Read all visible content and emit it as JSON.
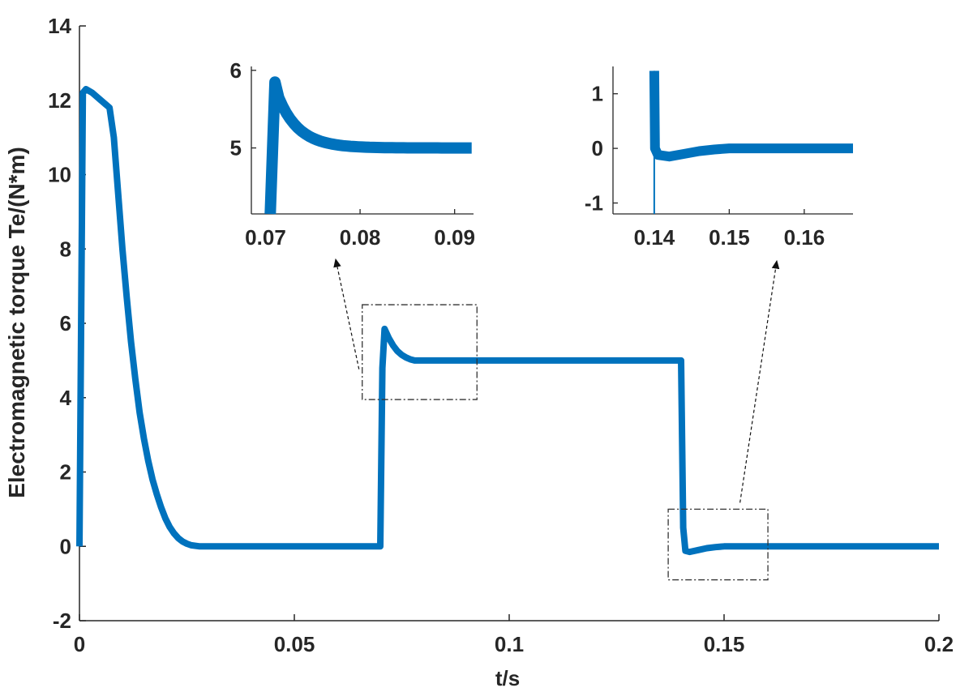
{
  "chart_data": {
    "type": "line",
    "xlabel": "t/s",
    "ylabel": "Electromagnetic torque Te/(N*m)",
    "xlim": [
      0,
      0.2
    ],
    "ylim": [
      -2,
      14
    ],
    "grid": false,
    "x_ticks": [
      "0",
      "0.05",
      "0.1",
      "0.15",
      "0.2"
    ],
    "y_ticks": [
      "-2",
      "0",
      "2",
      "4",
      "6",
      "8",
      "10",
      "12",
      "14"
    ],
    "line_color": "#0072BD",
    "series": [
      {
        "values": [
          [
            0,
            0
          ],
          [
            0.0008,
            12.2
          ],
          [
            0.0015,
            12.3
          ],
          [
            0.003,
            12.2
          ],
          [
            0.005,
            12.0
          ],
          [
            0.007,
            11.8
          ],
          [
            0.008,
            11.0
          ],
          [
            0.009,
            9.5
          ],
          [
            0.01,
            8.0
          ],
          [
            0.011,
            6.7
          ],
          [
            0.012,
            5.5
          ],
          [
            0.013,
            4.5
          ],
          [
            0.014,
            3.6
          ],
          [
            0.015,
            2.9
          ],
          [
            0.016,
            2.3
          ],
          [
            0.017,
            1.8
          ],
          [
            0.018,
            1.4
          ],
          [
            0.019,
            1.05
          ],
          [
            0.02,
            0.75
          ],
          [
            0.021,
            0.52
          ],
          [
            0.022,
            0.35
          ],
          [
            0.023,
            0.22
          ],
          [
            0.024,
            0.13
          ],
          [
            0.025,
            0.07
          ],
          [
            0.026,
            0.03
          ],
          [
            0.028,
            0.0
          ],
          [
            0.07,
            0.0
          ],
          [
            0.0705,
            4.8
          ],
          [
            0.071,
            5.85
          ],
          [
            0.072,
            5.6
          ],
          [
            0.073,
            5.4
          ],
          [
            0.074,
            5.25
          ],
          [
            0.075,
            5.15
          ],
          [
            0.076,
            5.08
          ],
          [
            0.077,
            5.03
          ],
          [
            0.078,
            5.0
          ],
          [
            0.14,
            5.0
          ],
          [
            0.1405,
            0.5
          ],
          [
            0.141,
            -0.12
          ],
          [
            0.142,
            -0.15
          ],
          [
            0.144,
            -0.1
          ],
          [
            0.146,
            -0.05
          ],
          [
            0.148,
            -0.02
          ],
          [
            0.15,
            0.0
          ],
          [
            0.2,
            0.0
          ]
        ]
      }
    ],
    "insets": [
      {
        "xlim": [
          0.0685,
          0.092
        ],
        "ylim": [
          4.15,
          6.05
        ],
        "x_ticks": [
          "0.07",
          "0.08",
          "0.09"
        ],
        "y_ticks": [
          "5",
          "6"
        ],
        "source_box": {
          "x": [
            0.0658,
            0.0925
          ],
          "y": [
            3.95,
            6.5
          ]
        }
      },
      {
        "xlim": [
          0.1345,
          0.1665
        ],
        "ylim": [
          -1.2,
          1.5
        ],
        "x_ticks": [
          "0.14",
          "0.15",
          "0.16"
        ],
        "y_ticks": [
          "-1",
          "0",
          "1"
        ],
        "source_box": {
          "x": [
            0.137,
            0.1602
          ],
          "y": [
            -0.9,
            1.0
          ]
        }
      }
    ]
  }
}
